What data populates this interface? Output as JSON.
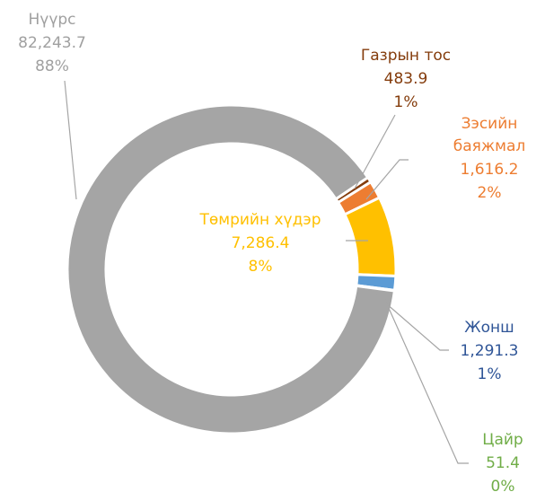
{
  "chart_data": {
    "type": "donut",
    "categories": [
      "Газрын тос",
      "Зэсийн баяжмал",
      "Төмрийн хүдэр",
      "Жонш",
      "Цайр",
      "Нүүрс"
    ],
    "values": [
      483.9,
      1616.2,
      7286.4,
      1291.3,
      51.4,
      82243.7
    ],
    "value_labels": [
      "483.9",
      "1,616.2",
      "7,286.4",
      "1,291.3",
      "51.4",
      "82,243.7"
    ],
    "percent_labels": [
      "1%",
      "2%",
      "8%",
      "1%",
      "0%",
      "88%"
    ],
    "colors": [
      "#843c0c",
      "#ed7d31",
      "#ffc000",
      "#5b9bd5",
      "#70ad47",
      "#a5a5a5"
    ],
    "label_colors": [
      "#843c0c",
      "#ed7d31",
      "#ffc000",
      "#2f5597",
      "#70ad47",
      "#a0a0a0"
    ]
  }
}
